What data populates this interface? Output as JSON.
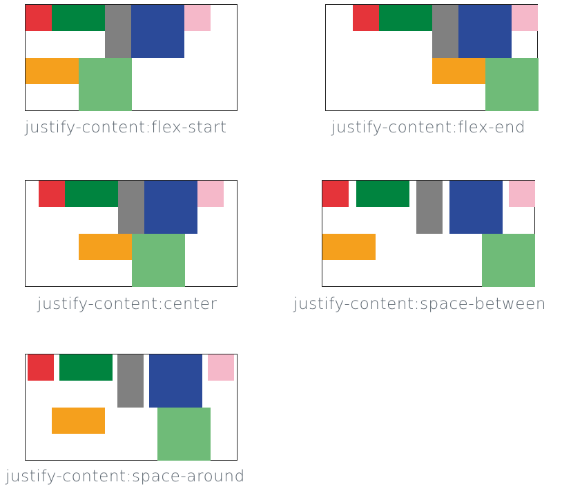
{
  "colors": {
    "red": "#e5343a",
    "dark_green": "#00843f",
    "gray": "#808080",
    "blue": "#2b4a99",
    "pink": "#f5b8c9",
    "orange": "#f5a01d",
    "light_green": "#6fbb78"
  },
  "diagrams": [
    {
      "caption": "justify-content:flex-start"
    },
    {
      "caption": "justify-content:flex-end"
    },
    {
      "caption": "justify-content:center"
    },
    {
      "caption": "justify-content:space-between"
    },
    {
      "caption": "justify-content:space-around"
    }
  ]
}
